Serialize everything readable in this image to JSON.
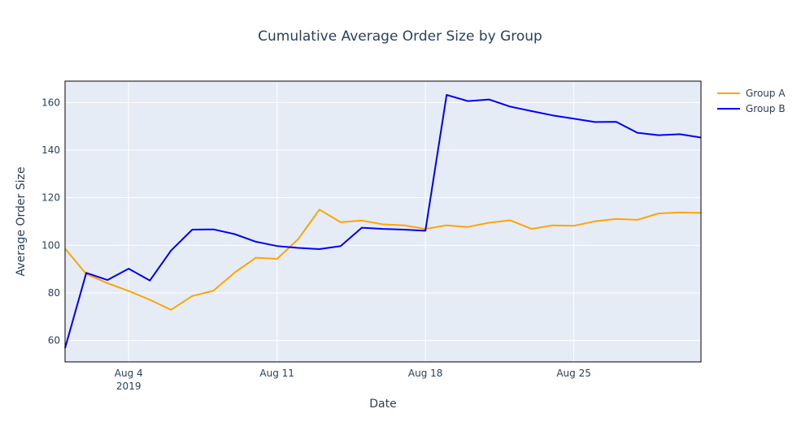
{
  "chart_data": {
    "type": "line",
    "title": "Cumulative Average Order Size by Group",
    "xlabel": "Date",
    "ylabel": "Average Order Size",
    "ylim": [
      51,
      169
    ],
    "xlim": [
      "2019-08-01",
      "2019-08-31"
    ],
    "y_ticks": [
      60,
      80,
      100,
      120,
      140,
      160
    ],
    "x_ticks": [
      {
        "date": "2019-08-04",
        "label": "Aug 4",
        "sublabel": "2019"
      },
      {
        "date": "2019-08-11",
        "label": "Aug 11",
        "sublabel": ""
      },
      {
        "date": "2019-08-18",
        "label": "Aug 18",
        "sublabel": ""
      },
      {
        "date": "2019-08-25",
        "label": "Aug 25",
        "sublabel": ""
      }
    ],
    "grid": true,
    "legend_position": "top-right",
    "background": "#e5ecf6",
    "x": [
      "2019-08-01",
      "2019-08-02",
      "2019-08-03",
      "2019-08-04",
      "2019-08-05",
      "2019-08-06",
      "2019-08-07",
      "2019-08-08",
      "2019-08-09",
      "2019-08-10",
      "2019-08-11",
      "2019-08-12",
      "2019-08-13",
      "2019-08-14",
      "2019-08-15",
      "2019-08-16",
      "2019-08-17",
      "2019-08-18",
      "2019-08-19",
      "2019-08-20",
      "2019-08-21",
      "2019-08-22",
      "2019-08-23",
      "2019-08-24",
      "2019-08-25",
      "2019-08-26",
      "2019-08-27",
      "2019-08-28",
      "2019-08-29",
      "2019-08-30",
      "2019-08-31"
    ],
    "series": [
      {
        "name": "Group A",
        "color": "#ffa500",
        "values": [
          98.6,
          87.9,
          84.1,
          80.8,
          77.1,
          72.9,
          78.7,
          80.9,
          88.5,
          94.8,
          94.3,
          102.6,
          115.0,
          109.7,
          110.4,
          108.8,
          108.4,
          106.9,
          108.4,
          107.7,
          109.5,
          110.5,
          106.9,
          108.4,
          108.2,
          110.1,
          111.1,
          110.7,
          113.4,
          113.8,
          113.6
        ]
      },
      {
        "name": "Group B",
        "color": "#0000ff",
        "values": [
          56.8,
          88.4,
          85.4,
          90.2,
          85.2,
          97.8,
          106.6,
          106.7,
          104.7,
          101.5,
          99.7,
          98.9,
          98.4,
          99.7,
          107.4,
          106.9,
          106.6,
          106.1,
          163.2,
          160.6,
          161.3,
          158.3,
          156.4,
          154.6,
          153.2,
          151.8,
          151.9,
          147.3,
          146.3,
          146.7,
          145.3
        ]
      }
    ]
  }
}
